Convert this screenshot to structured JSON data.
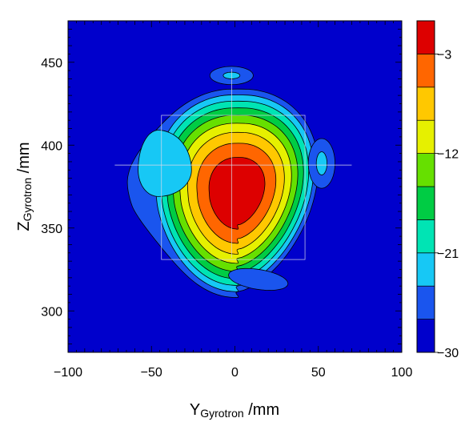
{
  "chart_data": {
    "type": "heatmap",
    "title": "",
    "xlabel": {
      "main": "Y",
      "sub": "Gyrotron",
      "unit": " /mm"
    },
    "ylabel": {
      "main": "Z",
      "sub": "Gyrotron",
      "unit": " /mm"
    },
    "xlim": [
      -100,
      100
    ],
    "ylim": [
      275,
      475
    ],
    "x_ticks": [
      -100,
      -50,
      0,
      50,
      100
    ],
    "x_tick_labels": [
      "−100",
      "−50",
      "0",
      "50",
      "100"
    ],
    "y_ticks": [
      300,
      350,
      400,
      450
    ],
    "y_tick_labels": [
      "300",
      "350",
      "400",
      "450"
    ],
    "colorbar": {
      "range": [
        -30,
        0
      ],
      "levels": [
        -30,
        -27,
        -24,
        -21,
        -18,
        -15,
        -12,
        -9,
        -6,
        -3,
        0
      ],
      "colors": [
        "#0000cc",
        "#1a55ee",
        "#17c8f5",
        "#00e4b4",
        "#00cc44",
        "#66e000",
        "#e6f000",
        "#ffc800",
        "#ff6600",
        "#dd0000"
      ],
      "tick_values": [
        -30,
        -21,
        -12,
        -3
      ],
      "tick_labels": [
        "−30",
        "−21",
        "−12",
        "−3"
      ]
    },
    "features": [
      {
        "kind": "main_lobe",
        "center": [
          2,
          372
        ],
        "peak_db": 0,
        "sigma": [
          14,
          17.5
        ]
      },
      {
        "kind": "sidelobe",
        "center": [
          52,
          389
        ],
        "peak_db": -22
      },
      {
        "kind": "sidelobe",
        "center": [
          -2,
          442
        ],
        "peak_db": -22
      },
      {
        "kind": "sidelobe",
        "center": [
          14,
          319
        ],
        "peak_db": -26
      },
      {
        "kind": "shoulder",
        "center": [
          -46,
          385
        ],
        "peak_db": -24
      }
    ],
    "grid": false
  }
}
